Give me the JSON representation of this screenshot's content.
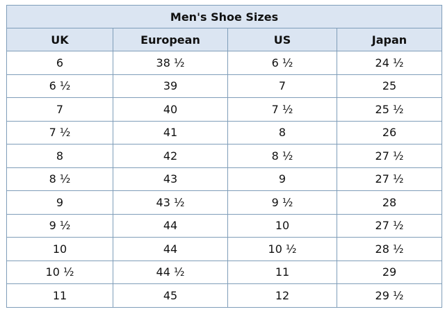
{
  "table": {
    "title": "Men's Shoe Sizes",
    "headers": [
      "UK",
      "European",
      "US",
      "Japan"
    ],
    "rows": [
      [
        "6",
        "38 ½",
        "6 ½",
        "24 ½"
      ],
      [
        "6 ½",
        "39",
        "7",
        "25"
      ],
      [
        "7",
        "40",
        "7 ½",
        "25 ½"
      ],
      [
        "7 ½",
        "41",
        "8",
        "26"
      ],
      [
        "8",
        "42",
        "8 ½",
        "27 ½"
      ],
      [
        "8 ½",
        "43",
        "9",
        "27 ½"
      ],
      [
        "9",
        "43 ½",
        "9 ½",
        "28"
      ],
      [
        "9 ½",
        "44",
        "10",
        "27 ½"
      ],
      [
        "10",
        "44",
        "10 ½",
        "28 ½"
      ],
      [
        "10 ½",
        "44 ½",
        "11",
        "29"
      ],
      [
        "11",
        "45",
        "12",
        "29 ½"
      ]
    ]
  },
  "colors": {
    "header_bg": "#dbe5f2",
    "border": "#7f9db9"
  }
}
